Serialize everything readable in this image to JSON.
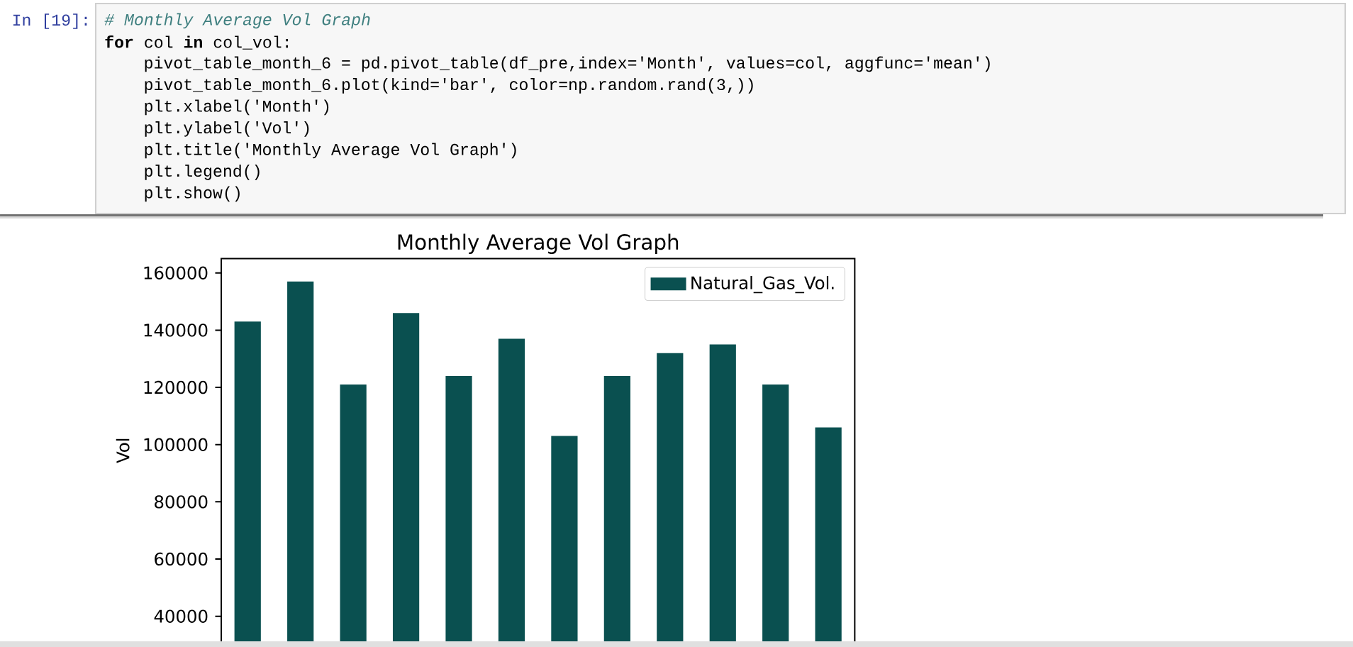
{
  "chart_data": {
    "type": "bar",
    "title": "Monthly Average Vol Graph",
    "ylabel": "Vol",
    "categories": [
      null,
      null,
      null,
      null,
      null,
      null,
      null,
      null,
      null,
      null,
      null,
      null
    ],
    "series": [
      {
        "name": "Natural_Gas_Vol.",
        "color": "#0a5050",
        "values": [
          143000,
          157000,
          121000,
          146000,
          124000,
          137000,
          103000,
          124000,
          132000,
          135000,
          121000,
          106000
        ]
      }
    ],
    "ylim": [
      31000,
      165000
    ],
    "yticks": [
      40000,
      60000,
      80000,
      100000,
      120000,
      140000,
      160000
    ],
    "legend": "top right",
    "annotations": [
      "In [19]:",
      "# Monthly Average Vol Graph",
      "**for** col **in** col_vol:",
      "pivot_table_month_6 = pd.pivot_table(df_pre,index='Month', values=col, aggfunc='mean')",
      "pivot_table_month_6.plot(kind='bar', color=np.random.rand(3,))",
      "plt.xlabel('Month')",
      "plt.ylabel('Vol')",
      "plt.title('Monthly Average Vol Graph')",
      "plt.legend()",
      "plt.show()"
    ]
  }
}
